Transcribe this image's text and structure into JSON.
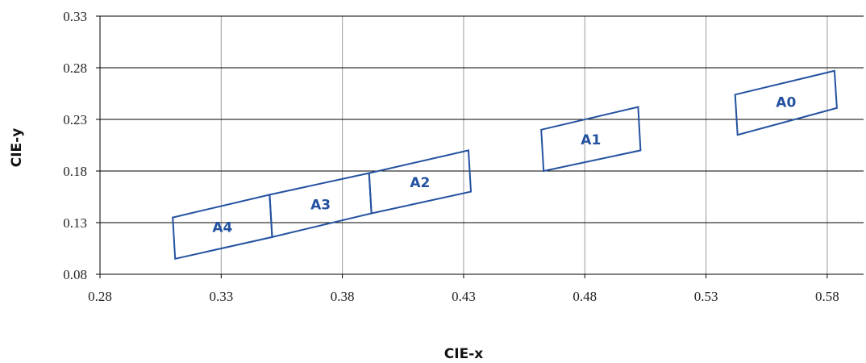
{
  "colors": {
    "region": "#2452a0",
    "grid_vertical": "#9a9a9a",
    "grid_horizontal": "#000000"
  },
  "chart_data": {
    "type": "scatter",
    "xlabel": "CIE-x",
    "ylabel": "CIE-y",
    "xlim": [
      0.28,
      0.595
    ],
    "ylim": [
      0.08,
      0.33
    ],
    "x_ticks": [
      0.28,
      0.33,
      0.38,
      0.43,
      0.48,
      0.53,
      0.58
    ],
    "x_tick_labels": [
      "0.28",
      "0.33",
      "0.38",
      "0.43",
      "0.48",
      "0.53",
      "0.58"
    ],
    "y_ticks": [
      0.08,
      0.13,
      0.18,
      0.23,
      0.28,
      0.33
    ],
    "y_tick_labels": [
      "0.08",
      "0.13",
      "0.18",
      "0.23",
      "0.28",
      "0.33"
    ],
    "grid": true,
    "regions": [
      {
        "name": "A0",
        "corners": [
          [
            0.542,
            0.254
          ],
          [
            0.583,
            0.277
          ],
          [
            0.584,
            0.241
          ],
          [
            0.543,
            0.215
          ]
        ]
      },
      {
        "name": "A1",
        "corners": [
          [
            0.462,
            0.22
          ],
          [
            0.502,
            0.242
          ],
          [
            0.503,
            0.2
          ],
          [
            0.463,
            0.18
          ]
        ]
      },
      {
        "name": "A2",
        "corners": [
          [
            0.391,
            0.178
          ],
          [
            0.432,
            0.2
          ],
          [
            0.433,
            0.16
          ],
          [
            0.392,
            0.139
          ]
        ]
      },
      {
        "name": "A3",
        "corners": [
          [
            0.35,
            0.157
          ],
          [
            0.391,
            0.178
          ],
          [
            0.392,
            0.139
          ],
          [
            0.351,
            0.116
          ]
        ]
      },
      {
        "name": "A4",
        "corners": [
          [
            0.31,
            0.135
          ],
          [
            0.35,
            0.157
          ],
          [
            0.351,
            0.116
          ],
          [
            0.311,
            0.095
          ]
        ]
      }
    ]
  }
}
